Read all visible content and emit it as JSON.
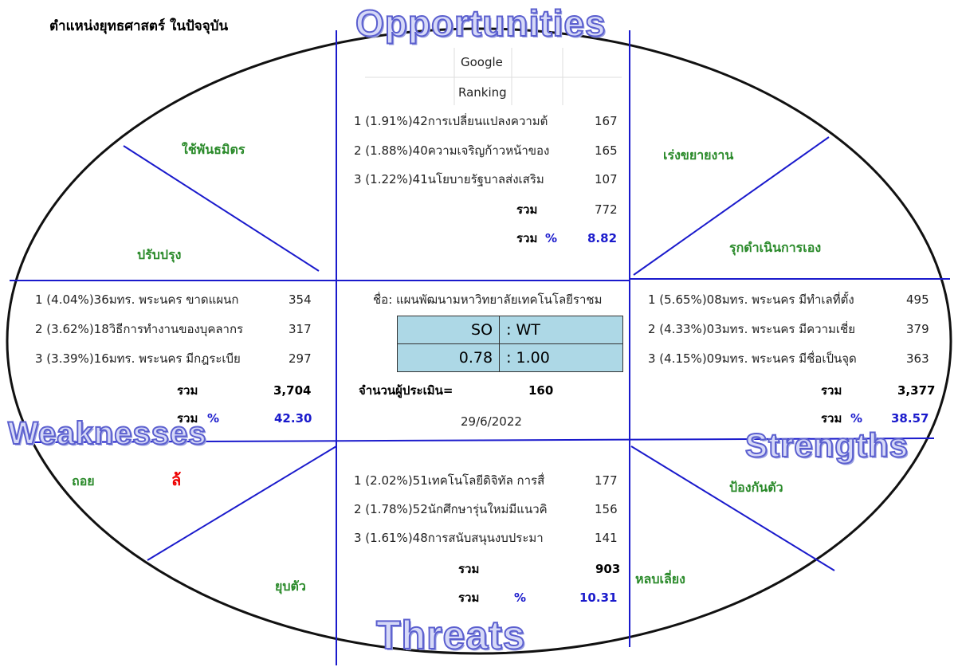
{
  "title": "ตำแหน่งยุทธศาสตร์ ในปัจจุบัน",
  "headings": {
    "opportunities": "Opportunities",
    "weaknesses": "Weaknesses",
    "strengths": "Strengths",
    "threats": "Threats"
  },
  "zone_labels": {
    "top_left_upper": "ใช้พันธมิตร",
    "top_left_lower": "ปรับปรุง",
    "top_right_upper": "เร่งขยายงาน",
    "top_right_lower": "รุกดำเนินการเอง",
    "bottom_left_a": "ถอย",
    "bottom_left_b": "ล้",
    "bottom_left_lower": "ยุบตัว",
    "bottom_right_upper": "ป้องกันตัว",
    "bottom_right_lower": "หลบเลี่ยง"
  },
  "opportunities": {
    "column_header": [
      "Google",
      "Ranking"
    ],
    "items": [
      {
        "text": "1 (1.91%)42การเปลี่ยนแปลงความต้",
        "score": "167"
      },
      {
        "text": "2 (1.88%)40ความเจริญก้าวหน้าของ",
        "score": "165"
      },
      {
        "text": "3 (1.22%)41นโยบายรัฐบาลส่งเสริม",
        "score": "107"
      }
    ],
    "total_label": "รวม",
    "total": "772",
    "percent_label": "รวม",
    "percent_sign": "%",
    "percent": "8.82"
  },
  "weaknesses": {
    "items": [
      {
        "text": "1 (4.04%)36มทร. พระนคร ขาดแผนก",
        "score": "354"
      },
      {
        "text": "2 (3.62%)18วิธีการทำงานของบุคลากร",
        "score": "317"
      },
      {
        "text": "3 (3.39%)16มทร. พระนคร มีกฎระเบีย",
        "score": "297"
      }
    ],
    "total_label": "รวม",
    "total": "3,704",
    "percent_label": "รวม",
    "percent_sign": "%",
    "percent": "42.30"
  },
  "strengths": {
    "items": [
      {
        "text": "1 (5.65%)08มทร. พระนคร มีทำเลที่ตั้ง",
        "score": "495"
      },
      {
        "text": "2 (4.33%)03มทร. พระนคร มีความเชี่ย",
        "score": "379"
      },
      {
        "text": "3 (4.15%)09มทร. พระนคร มีชื่อเป็นจุด",
        "score": "363"
      }
    ],
    "total_label": "รวม",
    "total": "3,377",
    "percent_label": "รวม",
    "percent_sign": "%",
    "percent": "38.57"
  },
  "threats": {
    "items": [
      {
        "text": "1 (2.02%)51เทคโนโลยีดิจิทัล การสื่",
        "score": "177"
      },
      {
        "text": "2 (1.78%)52นักศึกษารุ่นใหม่มีแนวคิ",
        "score": "156"
      },
      {
        "text": "3 (1.61%)48การสนับสนุนงบประมา",
        "score": "141"
      }
    ],
    "total_label": "รวม",
    "total": "903",
    "percent_label": "รวม",
    "percent_sign": "%",
    "percent": "10.31"
  },
  "center": {
    "name": "ชื่อ: แผนพัฒนามหาวิทยาลัยเทคโนโลยีราชม",
    "ratio_table": [
      [
        "SO",
        ":  WT"
      ],
      [
        "0.78",
        ": 1.00"
      ]
    ],
    "raters_label": "จำนวนผู้ประเมิน=",
    "raters": "160",
    "date": "29/6/2022"
  }
}
